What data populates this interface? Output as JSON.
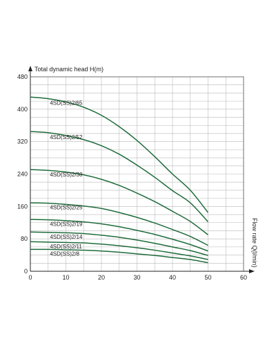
{
  "chart_data": {
    "type": "line",
    "title": "",
    "ylabel": "Total dynamic head H(m)",
    "xlabel": "Flow rate Q(l/min)",
    "xlim": [
      0,
      60
    ],
    "ylim": [
      0,
      480
    ],
    "x_ticks": [
      "0",
      "10",
      "20",
      "30",
      "40",
      "50",
      "60"
    ],
    "y_ticks": [
      "0",
      "80",
      "160",
      "240",
      "320",
      "400",
      "480"
    ],
    "grid": true,
    "line_color": "#1e6b3a",
    "x": [
      0,
      5,
      10,
      15,
      20,
      25,
      30,
      35,
      40,
      45,
      50
    ],
    "series": [
      {
        "name": "4SD(SS)2/65",
        "values": [
          430,
          426,
          418,
          405,
          385,
          357,
          323,
          283,
          240,
          200,
          145
        ]
      },
      {
        "name": "4SD(SS)2/52",
        "values": [
          345,
          342,
          335,
          325,
          310,
          289,
          262,
          232,
          199,
          169,
          122
        ]
      },
      {
        "name": "4SD(SS)2/38",
        "values": [
          251,
          249,
          245,
          238,
          227,
          212,
          193,
          172,
          148,
          123,
          90
        ]
      },
      {
        "name": "4SD(SS)2/25",
        "values": [
          169,
          168,
          165,
          161,
          155,
          145,
          133,
          119,
          103,
          86,
          64
        ]
      },
      {
        "name": "4SD(SS)2/19",
        "values": [
          128,
          127,
          125,
          122,
          117,
          110,
          101,
          91,
          79,
          66,
          50
        ]
      },
      {
        "name": "4SD(SS)2/14",
        "values": [
          97,
          96,
          95,
          93,
          89,
          84,
          77,
          69,
          60,
          51,
          39
        ]
      },
      {
        "name": "4SD(SS)2/11",
        "values": [
          73,
          72,
          71,
          70,
          67,
          63,
          58,
          52,
          45,
          38,
          29
        ]
      },
      {
        "name": "4SD(SS)2/8",
        "values": [
          54,
          54,
          53,
          52,
          50,
          47,
          43,
          39,
          34,
          29,
          21
        ]
      }
    ]
  }
}
